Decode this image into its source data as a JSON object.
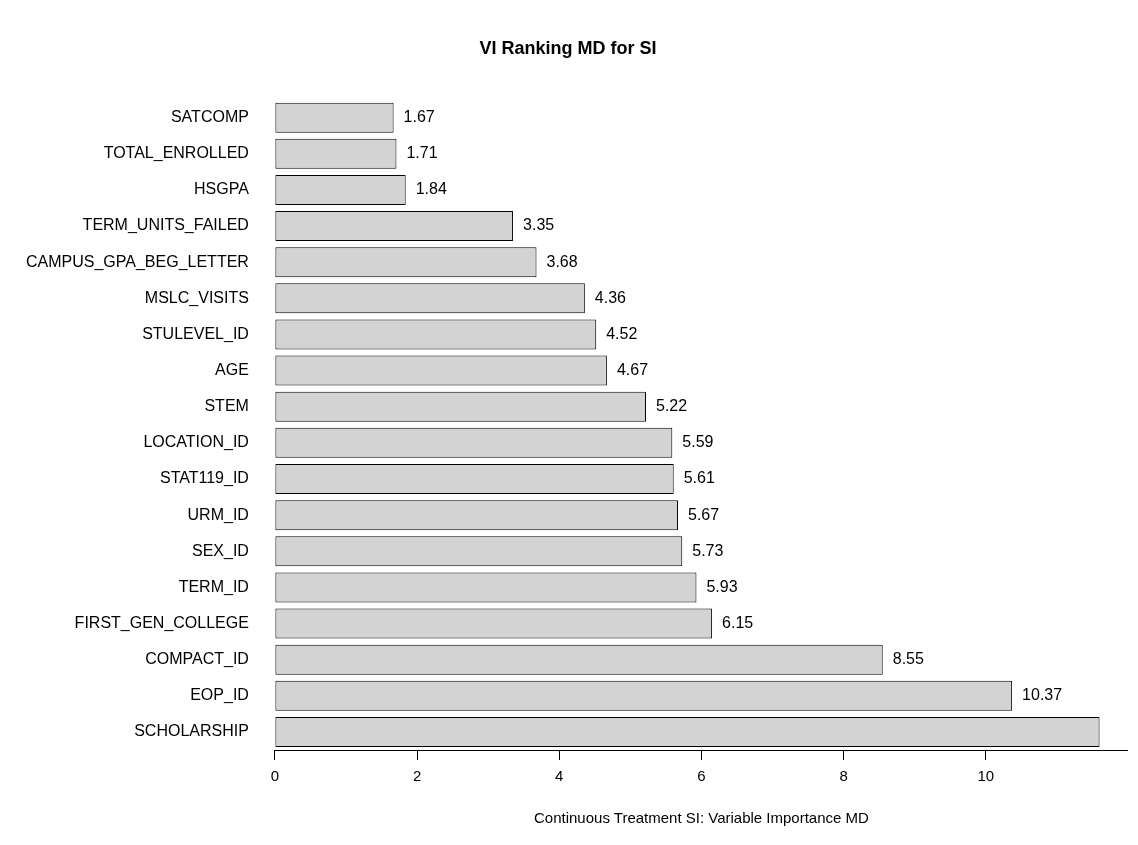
{
  "chart_data": {
    "type": "bar",
    "orientation": "horizontal",
    "title": "VI Ranking MD for SI",
    "xlabel": "Continuous Treatment SI: Variable Importance MD",
    "categories": [
      "SATCOMP",
      "TOTAL_ENROLLED",
      "HSGPA",
      "TERM_UNITS_FAILED",
      "CAMPUS_GPA_BEG_LETTER",
      "MSLC_VISITS",
      "STULEVEL_ID",
      "AGE",
      "STEM",
      "LOCATION_ID",
      "STAT119_ID",
      "URM_ID",
      "SEX_ID",
      "TERM_ID",
      "FIRST_GEN_COLLEGE",
      "COMPACT_ID",
      "EOP_ID",
      "SCHOLARSHIP"
    ],
    "values": [
      1.67,
      1.71,
      1.84,
      3.35,
      3.68,
      4.36,
      4.52,
      4.67,
      5.22,
      5.59,
      5.61,
      5.67,
      5.73,
      5.93,
      6.15,
      8.55,
      10.37,
      11.6
    ],
    "value_labels": [
      "1.67",
      "1.71",
      "1.84",
      "3.35",
      "3.68",
      "4.36",
      "4.52",
      "4.67",
      "5.22",
      "5.59",
      "5.61",
      "5.67",
      "5.73",
      "5.93",
      "6.15",
      "8.55",
      "10.37",
      null
    ],
    "color": "#d3d3d3",
    "xlim": [
      0,
      12
    ],
    "xticks": [
      0,
      2,
      4,
      6,
      8,
      10
    ],
    "grid": false,
    "legend": false
  }
}
